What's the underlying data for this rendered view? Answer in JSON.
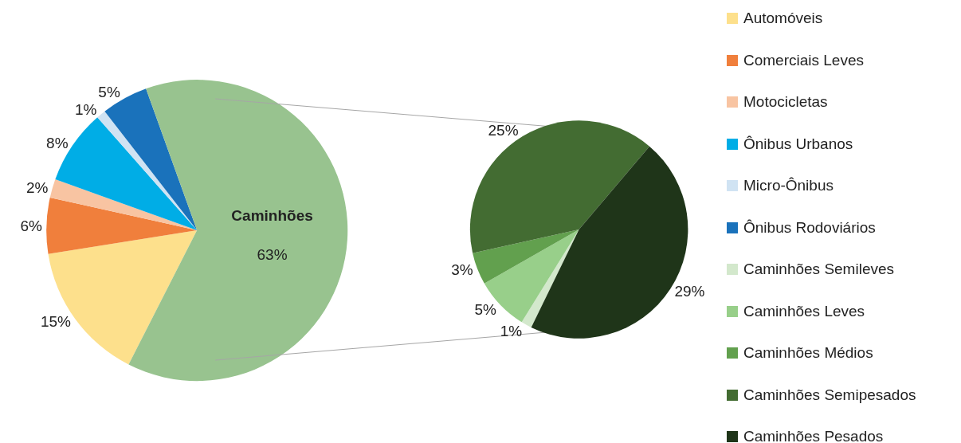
{
  "chart_data": [
    {
      "type": "pie",
      "categories": [
        "Automóveis",
        "Comerciais Leves",
        "Motocicletas",
        "Ônibus Urbanos",
        "Micro-Ônibus",
        "Ônibus Rodoviários",
        "Caminhões"
      ],
      "values": [
        15,
        6,
        2,
        8,
        1,
        5,
        63
      ],
      "colors": [
        "#fde08c",
        "#f07f3c",
        "#f8c4a2",
        "#00ade6",
        "#d0e3f3",
        "#1a72bb",
        "#98c38f"
      ],
      "value_labels": [
        "15%",
        "6%",
        "2%",
        "8%",
        "1%",
        "5%",
        "63%"
      ],
      "legend": "right"
    },
    {
      "type": "pie",
      "categories": [
        "Caminhões Semileves",
        "Caminhões Leves",
        "Caminhões Médios",
        "Caminhões Semipesados",
        "Caminhões Pesados"
      ],
      "values": [
        1,
        5,
        3,
        25,
        29
      ],
      "colors": [
        "#d3e8cc",
        "#98cf8a",
        "#62a04e",
        "#436c32",
        "#1f3519"
      ],
      "value_labels": [
        "1%",
        "5%",
        "3%",
        "25%",
        "29%"
      ],
      "legend": "right"
    }
  ]
}
